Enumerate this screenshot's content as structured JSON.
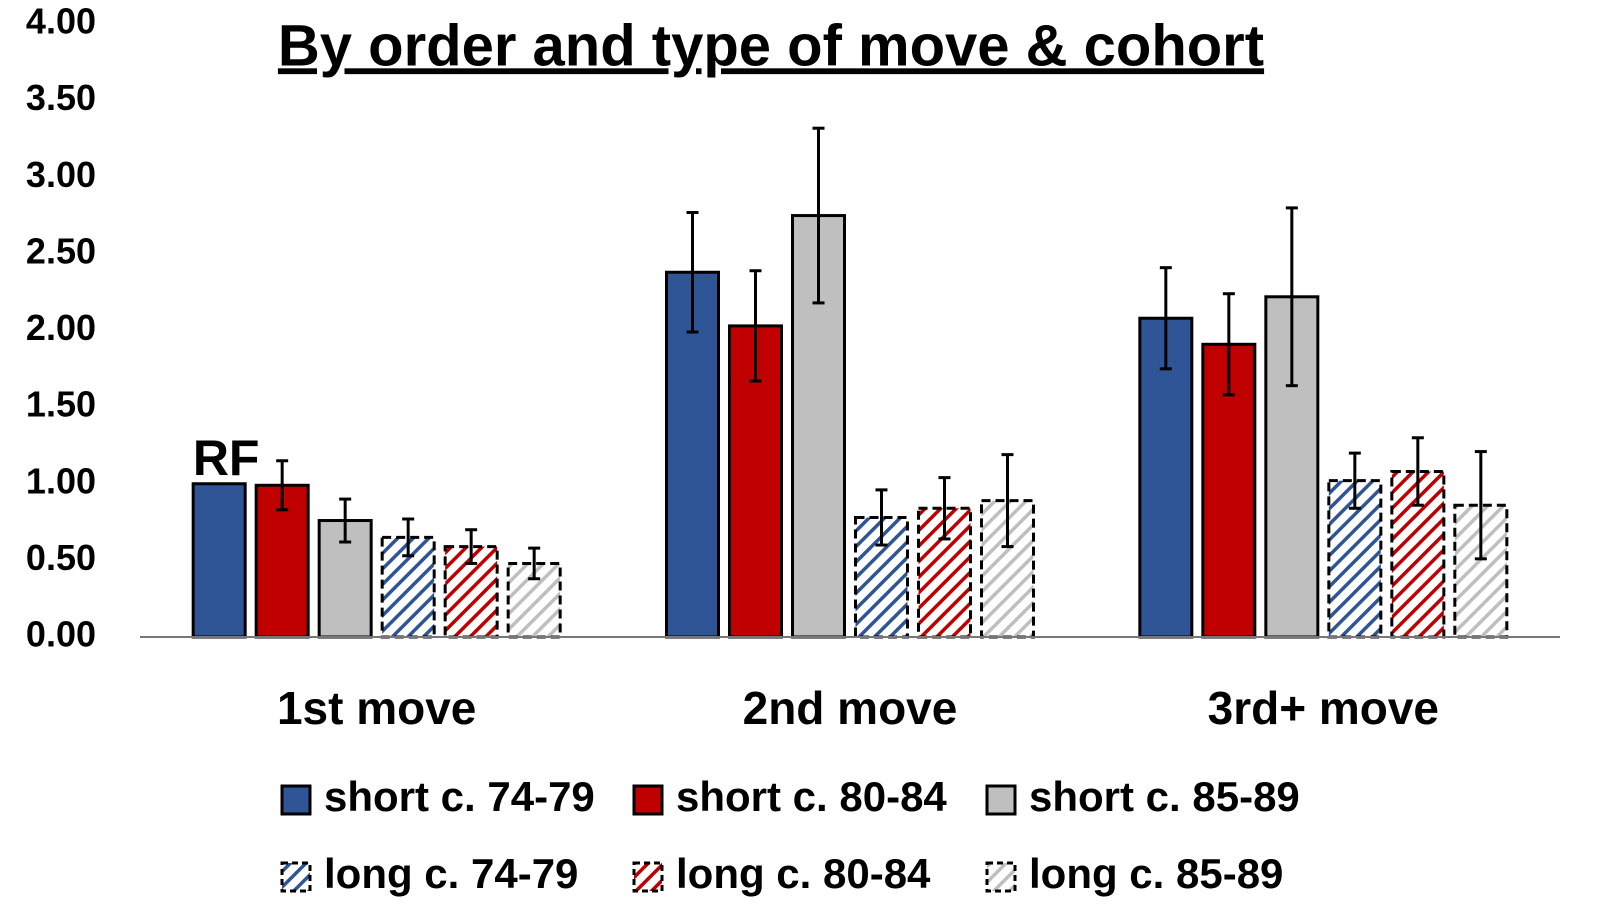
{
  "chart_data": {
    "type": "bar",
    "title": "By order and type of move & cohort",
    "annotation": "RF",
    "categories": [
      "1st move",
      "2nd move",
      "3rd+ move"
    ],
    "ylim": [
      0,
      4
    ],
    "yticks": [
      {
        "value": 0,
        "label": "0.00"
      },
      {
        "value": 0.5,
        "label": "0.50"
      },
      {
        "value": 1,
        "label": "1.00"
      },
      {
        "value": 1.5,
        "label": "1.50"
      },
      {
        "value": 2,
        "label": "2.00"
      },
      {
        "value": 2.5,
        "label": "2.50"
      },
      {
        "value": 3,
        "label": "3.00"
      },
      {
        "value": 3.5,
        "label": "3.50"
      },
      {
        "value": 4,
        "label": "4.00"
      }
    ],
    "grid": false,
    "legend": "bottom",
    "series": [
      {
        "name": "short c. 74-79",
        "color": "#2f5597",
        "pattern": "solid",
        "border": "solid",
        "values": [
          1.0,
          2.38,
          2.08
        ],
        "errors": [
          null,
          0.39,
          0.33
        ]
      },
      {
        "name": "short c. 80-84",
        "color": "#c00000",
        "pattern": "solid",
        "border": "solid",
        "values": [
          0.99,
          2.03,
          1.91
        ],
        "errors": [
          0.16,
          0.36,
          0.33
        ]
      },
      {
        "name": "short c. 85-89",
        "color": "#bfbfbf",
        "pattern": "solid",
        "border": "solid",
        "values": [
          0.76,
          2.75,
          2.22
        ],
        "errors": [
          0.14,
          0.57,
          0.58
        ]
      },
      {
        "name": "long c. 74-79",
        "color": "#2f5597",
        "pattern": "hatch",
        "border": "dashed",
        "values": [
          0.65,
          0.78,
          1.02
        ],
        "errors": [
          0.12,
          0.18,
          0.18
        ]
      },
      {
        "name": "long c. 80-84",
        "color": "#c00000",
        "pattern": "hatch",
        "border": "dashed",
        "values": [
          0.59,
          0.84,
          1.08
        ],
        "errors": [
          0.11,
          0.2,
          0.22
        ]
      },
      {
        "name": "long c. 85-89",
        "color": "#bfbfbf",
        "pattern": "hatch",
        "border": "dashed",
        "values": [
          0.48,
          0.89,
          0.86
        ],
        "errors": [
          0.1,
          0.3,
          0.35
        ]
      }
    ]
  }
}
